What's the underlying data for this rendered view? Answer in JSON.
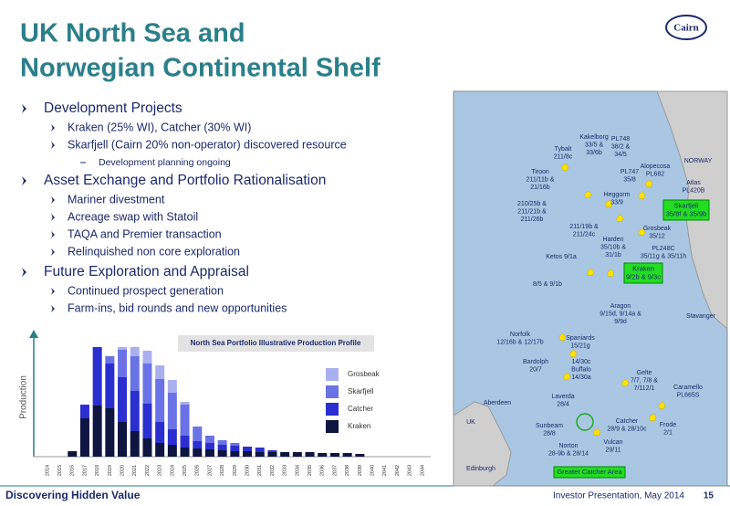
{
  "header": {
    "title_lines": [
      "UK North Sea and",
      "Norwegian Continental Shelf"
    ],
    "logo": "Cairn"
  },
  "bullets": [
    {
      "text": "Development Projects",
      "items": [
        {
          "text": "Kraken (25% WI), Catcher (30% WI)",
          "sub": []
        },
        {
          "text": "Skarfjell (Cairn 20% non-operator) discovered resource",
          "sub": [
            "Development planning ongoing"
          ]
        }
      ]
    },
    {
      "text": "Asset Exchange and Portfolio Rationalisation",
      "items": [
        {
          "text": "Mariner divestment",
          "sub": []
        },
        {
          "text": "Acreage swap with Statoil",
          "sub": []
        },
        {
          "text": "TAQA and Premier transaction",
          "sub": []
        },
        {
          "text": "Relinquished non core exploration",
          "sub": []
        }
      ]
    },
    {
      "text": "Future Exploration and Appraisal",
      "items": [
        {
          "text": "Continued prospect generation",
          "sub": []
        },
        {
          "text": "Farm-ins, bid rounds and new opportunities",
          "sub": []
        }
      ]
    }
  ],
  "chart_data": {
    "type": "stacked-bar",
    "title": "North Sea Portfolio Illustrative Production Profile",
    "y_label": "Production",
    "categories": [
      "2014",
      "2015",
      "2016",
      "2017",
      "2018",
      "2019",
      "2020",
      "2021",
      "2022",
      "2023",
      "2024",
      "2025",
      "2026",
      "2027",
      "2028",
      "2029",
      "2030",
      "2031",
      "2032",
      "2033",
      "2034",
      "2035",
      "2036",
      "2037",
      "2038",
      "2039",
      "2040",
      "2041",
      "2042",
      "2043",
      "2044"
    ],
    "series": [
      {
        "name": "Kraken",
        "color": "#0d1540",
        "values": [
          0,
          0,
          0.6,
          4.2,
          5.6,
          5.3,
          3.8,
          2.8,
          2.0,
          1.5,
          1.3,
          1.0,
          0.9,
          0.8,
          0.7,
          0.6,
          0.6,
          0.5,
          0.5,
          0.5,
          0.5,
          0.5,
          0.4,
          0.4,
          0.4,
          0.3,
          0,
          0,
          0,
          0,
          0
        ]
      },
      {
        "name": "Catcher",
        "color": "#2b2fcf",
        "values": [
          0,
          0,
          0,
          1.5,
          6.4,
          4.9,
          4.9,
          4.4,
          3.8,
          2.3,
          1.7,
          1.3,
          0.8,
          0.7,
          0.6,
          0.6,
          0.5,
          0.5,
          0.2,
          0,
          0,
          0,
          0,
          0,
          0,
          0,
          0,
          0,
          0,
          0,
          0
        ]
      },
      {
        "name": "Skarfjell",
        "color": "#6a72e6",
        "values": [
          0,
          0,
          0,
          0,
          0,
          0.8,
          3.0,
          3.8,
          4.4,
          4.7,
          4.0,
          3.4,
          1.6,
          0.8,
          0.5,
          0.3,
          0,
          0,
          0,
          0,
          0,
          0,
          0,
          0,
          0,
          0,
          0,
          0,
          0,
          0,
          0
        ]
      },
      {
        "name": "Grosbeak",
        "color": "#aab0ef",
        "values": [
          0,
          0,
          0,
          0,
          0,
          0,
          0.3,
          1.0,
          1.4,
          1.5,
          1.4,
          0.3,
          0,
          0,
          0,
          0,
          0,
          0,
          0,
          0,
          0,
          0,
          0,
          0,
          0,
          0,
          0,
          0,
          0,
          0,
          0
        ]
      }
    ]
  },
  "map": {
    "labels": [
      [
        "Kakelborg",
        "33/5 &",
        "33/6b"
      ],
      [
        "Tybalt",
        "211/8c"
      ],
      [
        "PL748",
        "38/2 &",
        "34/5"
      ],
      [
        "Tiroon",
        "211/11b &",
        "21/16b"
      ],
      [
        "PL747",
        "35/8"
      ],
      [
        "Alopecosa",
        "PL682"
      ],
      [
        "NORWAY"
      ],
      [
        "Atlas",
        "PL420B"
      ],
      [
        "210/25b &",
        "211/21b &",
        "211/26b"
      ],
      [
        "Heggorm",
        "33/9"
      ],
      [
        "Grosbeak",
        "35/12"
      ],
      [
        "211/19b &",
        "211/24c"
      ],
      [
        "Harden",
        "35/10b &",
        "31/1b"
      ],
      [
        "PL248C",
        "35/11g & 35/11h"
      ],
      [
        "Ketos 9/1a"
      ],
      [
        "8/5 & 9/1b"
      ],
      [
        "Aragon",
        "9/15d, 9/14a &",
        "9/9d"
      ],
      [
        "Stavanger"
      ],
      [
        "Norfolk",
        "12/16b & 12/17b"
      ],
      [
        "Spaniards",
        "15/21g"
      ],
      [
        "14/30c",
        "Buffalo",
        "14/30a"
      ],
      [
        "Bardolph",
        "20/7"
      ],
      [
        "Gelte",
        "7/7, 7/8 &",
        "7/112/1"
      ],
      [
        "Caramello",
        "PL665S"
      ],
      [
        "Laverda",
        "28/4"
      ],
      [
        "Aberdeen"
      ],
      [
        "UK"
      ],
      [
        "Sunbeam",
        "28/8"
      ],
      [
        "Catcher",
        "28/9 & 28/10c"
      ],
      [
        "Frode",
        "2/1"
      ],
      [
        "Norton",
        "28-9b & 28/14"
      ],
      [
        "Vulcan",
        "29/11"
      ],
      [
        "Edinburgh"
      ]
    ],
    "boxes": [
      [
        "Skarfjell",
        "35/8f & 35/9b"
      ],
      [
        "Kraken",
        "9/2b & 9/3c"
      ],
      [
        "Greater Catcher Area"
      ]
    ]
  },
  "footer": {
    "tagline": "Discovering Hidden Value",
    "event": "Investor Presentation, May 2014",
    "page": "15"
  }
}
